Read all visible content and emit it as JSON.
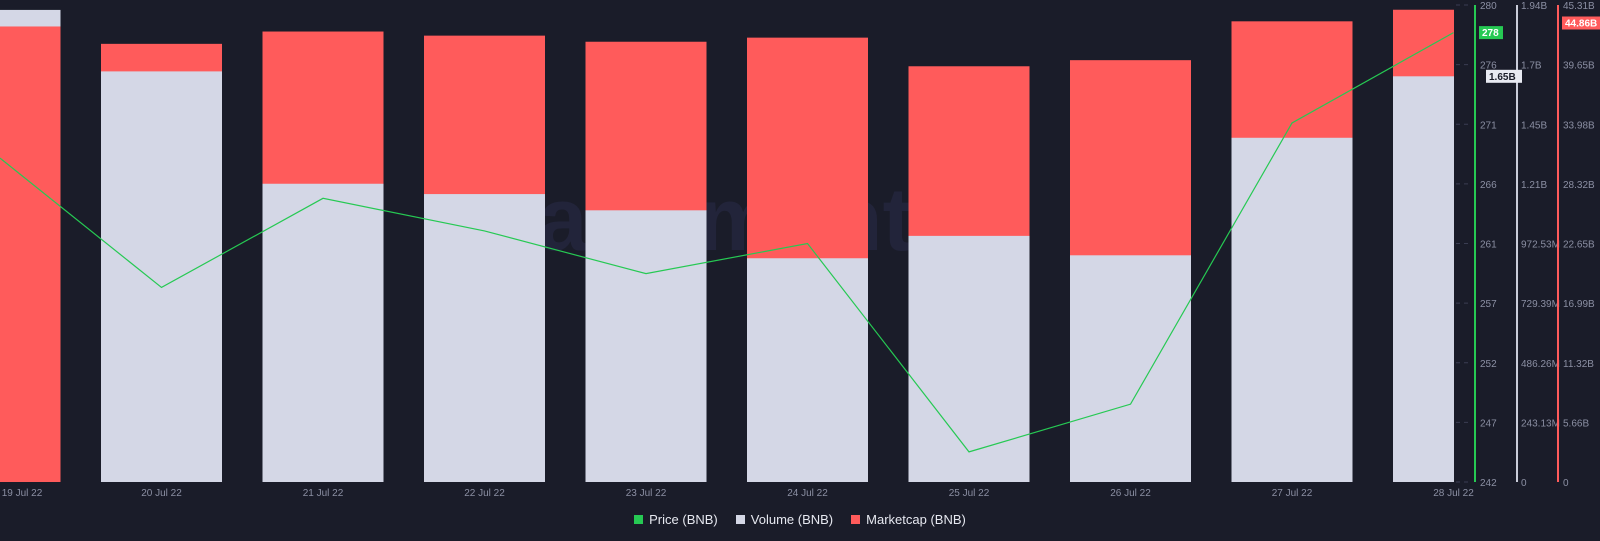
{
  "chart_data": {
    "type": "bar+line",
    "categories": [
      "19 Jul 22",
      "20 Jul 22",
      "21 Jul 22",
      "22 Jul 22",
      "23 Jul 22",
      "24 Jul 22",
      "25 Jul 22",
      "26 Jul 22",
      "27 Jul 22",
      "28 Jul 22"
    ],
    "series": [
      {
        "name": "Price (BNB)",
        "type": "line",
        "color": "#26c953",
        "axis": "price",
        "values": [
          267.8,
          257.5,
          264.6,
          262.0,
          258.6,
          261.0,
          244.4,
          248.2,
          270.6,
          277.8
        ]
      },
      {
        "name": "Volume (BNB)",
        "type": "bar",
        "color": "#d4d7e6",
        "axis": "volume",
        "values": [
          1920000000.0,
          1670000000.0,
          1213000000.0,
          1171000000.0,
          1105000000.0,
          910000000.0,
          1001000000.0,
          922000000.0,
          1400000000.0,
          1650000000.0
        ]
      },
      {
        "name": "Marketcap (BNB)",
        "type": "bar",
        "color": "#ff5b5b",
        "axis": "marketcap",
        "values": [
          43270000000.0,
          41620000000.0,
          42790000000.0,
          42400000000.0,
          41820000000.0,
          42210000000.0,
          39490000000.0,
          40070000000.0,
          43760000000.0,
          44860000000.0
        ]
      }
    ],
    "axes": {
      "price": {
        "range": [
          242,
          280
        ],
        "ticks": [
          "280",
          "276",
          "271",
          "266",
          "261",
          "257",
          "252",
          "247",
          "242"
        ],
        "color": "#26c953",
        "current_label": "278",
        "current_value": 277.8
      },
      "volume": {
        "range": [
          0,
          1940000000.0
        ],
        "ticks": [
          "1.94B",
          "1.7B",
          "1.45B",
          "1.21B",
          "972.53M",
          "729.39M",
          "486.26M",
          "243.13M",
          "0"
        ],
        "color": "#c9ccd9",
        "current_label": "1.65B",
        "current_value": 1650000000.0
      },
      "marketcap": {
        "range": [
          0,
          45310000000.0
        ],
        "ticks": [
          "45.31B",
          "39.65B",
          "33.98B",
          "28.32B",
          "22.65B",
          "16.99B",
          "11.32B",
          "5.66B",
          "0"
        ],
        "color": "#ff5b5b",
        "current_label": "44.86B",
        "current_value": 44860000000.0
      }
    },
    "legend": [
      "Price (BNB)",
      "Volume (BNB)",
      "Marketcap (BNB)"
    ],
    "legend_position": "bottom",
    "grid": false
  },
  "watermark": "santiment"
}
